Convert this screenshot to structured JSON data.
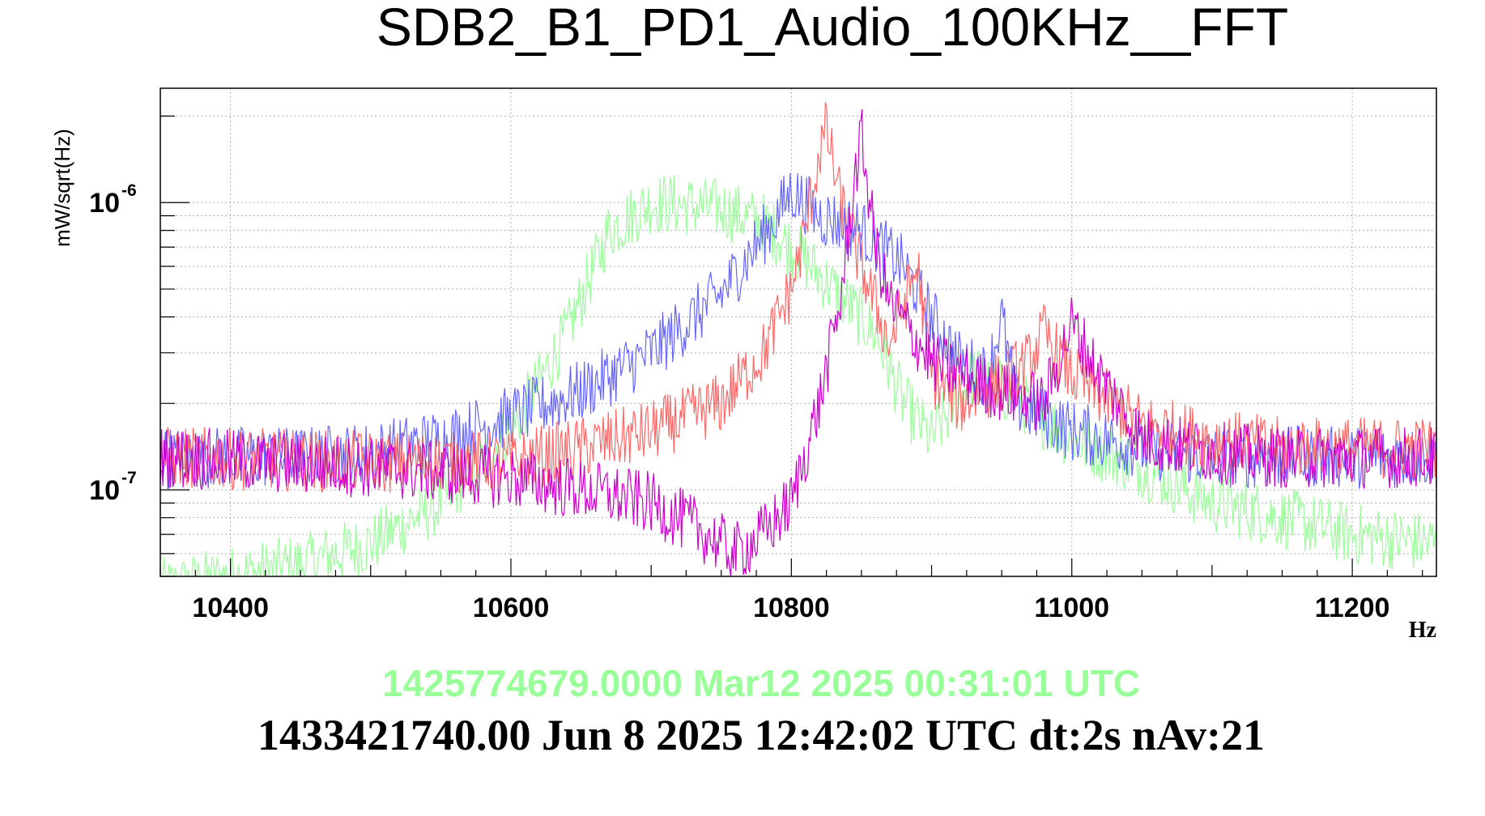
{
  "chart_data": {
    "type": "line",
    "title": "SDB2_B1_PD1_Audio_100KHz__FFT",
    "xlabel": "Hz",
    "ylabel": "mW/sqrt(Hz)",
    "xlim": [
      10350,
      11260
    ],
    "ylim": [
      5e-08,
      2.5e-06
    ],
    "yscale": "log",
    "grid": true,
    "x_ticks": [
      "10400",
      "10600",
      "10800",
      "11000",
      "11200"
    ],
    "y_ticks": [
      {
        "base": "10",
        "exp": "-7"
      },
      {
        "base": "10",
        "exp": "-6"
      }
    ],
    "series": [
      {
        "color": "#99ff99",
        "x": [
          10350,
          10450,
          10500,
          10550,
          10600,
          10640,
          10670,
          10700,
          10750,
          10780,
          10800,
          10830,
          10860,
          10880,
          10900,
          10930,
          10960,
          11000,
          11050,
          11100,
          11150,
          11200,
          11260
        ],
        "values": [
          4.5e-08,
          5.5e-08,
          6.5e-08,
          9e-08,
          1.6e-07,
          3.5e-07,
          8e-07,
          1e-06,
          9.5e-07,
          8.5e-07,
          7e-07,
          5e-07,
          3.5e-07,
          2e-07,
          1.5e-07,
          2.5e-07,
          2.1e-07,
          1.5e-07,
          1.2e-07,
          9e-08,
          8e-08,
          7e-08,
          6.5e-08
        ]
      },
      {
        "color": "#6666ff",
        "x": [
          10350,
          10450,
          10500,
          10550,
          10600,
          10650,
          10700,
          10750,
          10790,
          10800,
          10820,
          10850,
          10880,
          10900,
          10920,
          10940,
          10950,
          10960,
          11000,
          11050,
          11100,
          11150,
          11200,
          11260
        ],
        "values": [
          1.3e-07,
          1.3e-07,
          1.35e-07,
          1.5e-07,
          1.8e-07,
          2.2e-07,
          3e-07,
          4.8e-07,
          9e-07,
          1.1e-06,
          9e-07,
          8e-07,
          6e-07,
          4e-07,
          2.8e-07,
          2.5e-07,
          4e-07,
          2e-07,
          1.6e-07,
          1.4e-07,
          1.3e-07,
          1.3e-07,
          1.3e-07,
          1.3e-07
        ]
      },
      {
        "color": "#ff6666",
        "x": [
          10350,
          10500,
          10600,
          10650,
          10700,
          10750,
          10780,
          10800,
          10810,
          10820,
          10825,
          10835,
          10850,
          10870,
          10890,
          10900,
          10920,
          10950,
          10970,
          10980,
          11000,
          11050,
          11100,
          11150,
          11200,
          11260
        ],
        "values": [
          1.3e-07,
          1.25e-07,
          1.25e-07,
          1.4e-07,
          1.6e-07,
          2e-07,
          3e-07,
          5e-07,
          8e-07,
          1.5e-06,
          1.8e-06,
          1e-06,
          6e-07,
          3.2e-07,
          6e-07,
          2.5e-07,
          2e-07,
          2.4e-07,
          2.8e-07,
          3.5e-07,
          2.5e-07,
          1.7e-07,
          1.5e-07,
          1.4e-07,
          1.4e-07,
          1.4e-07
        ]
      },
      {
        "color": "#cc00cc",
        "x": [
          10350,
          10500,
          10600,
          10650,
          10700,
          10730,
          10760,
          10780,
          10800,
          10820,
          10835,
          10845,
          10850,
          10860,
          10870,
          10900,
          10950,
          10980,
          11000,
          11020,
          11050,
          11100,
          11150,
          11200,
          11260
        ],
        "values": [
          1.3e-07,
          1.2e-07,
          1.1e-07,
          1e-07,
          9e-08,
          7.5e-08,
          6e-08,
          7e-08,
          9e-08,
          2e-07,
          4.5e-07,
          1.2e-06,
          1.7e-06,
          7e-07,
          4.5e-07,
          2.8e-07,
          2.2e-07,
          2e-07,
          3.8e-07,
          2.5e-07,
          1.5e-07,
          1.35e-07,
          1.3e-07,
          1.3e-07,
          1.3e-07
        ]
      }
    ]
  },
  "timestamps": {
    "green": "1425774679.0000 Mar12 2025 00:31:01 UTC",
    "black": "1433421740.00 Jun 8 2025 12:42:02 UTC dt:2s nAv:21"
  },
  "colors": {
    "timestamp_green": "#99ff99"
  }
}
